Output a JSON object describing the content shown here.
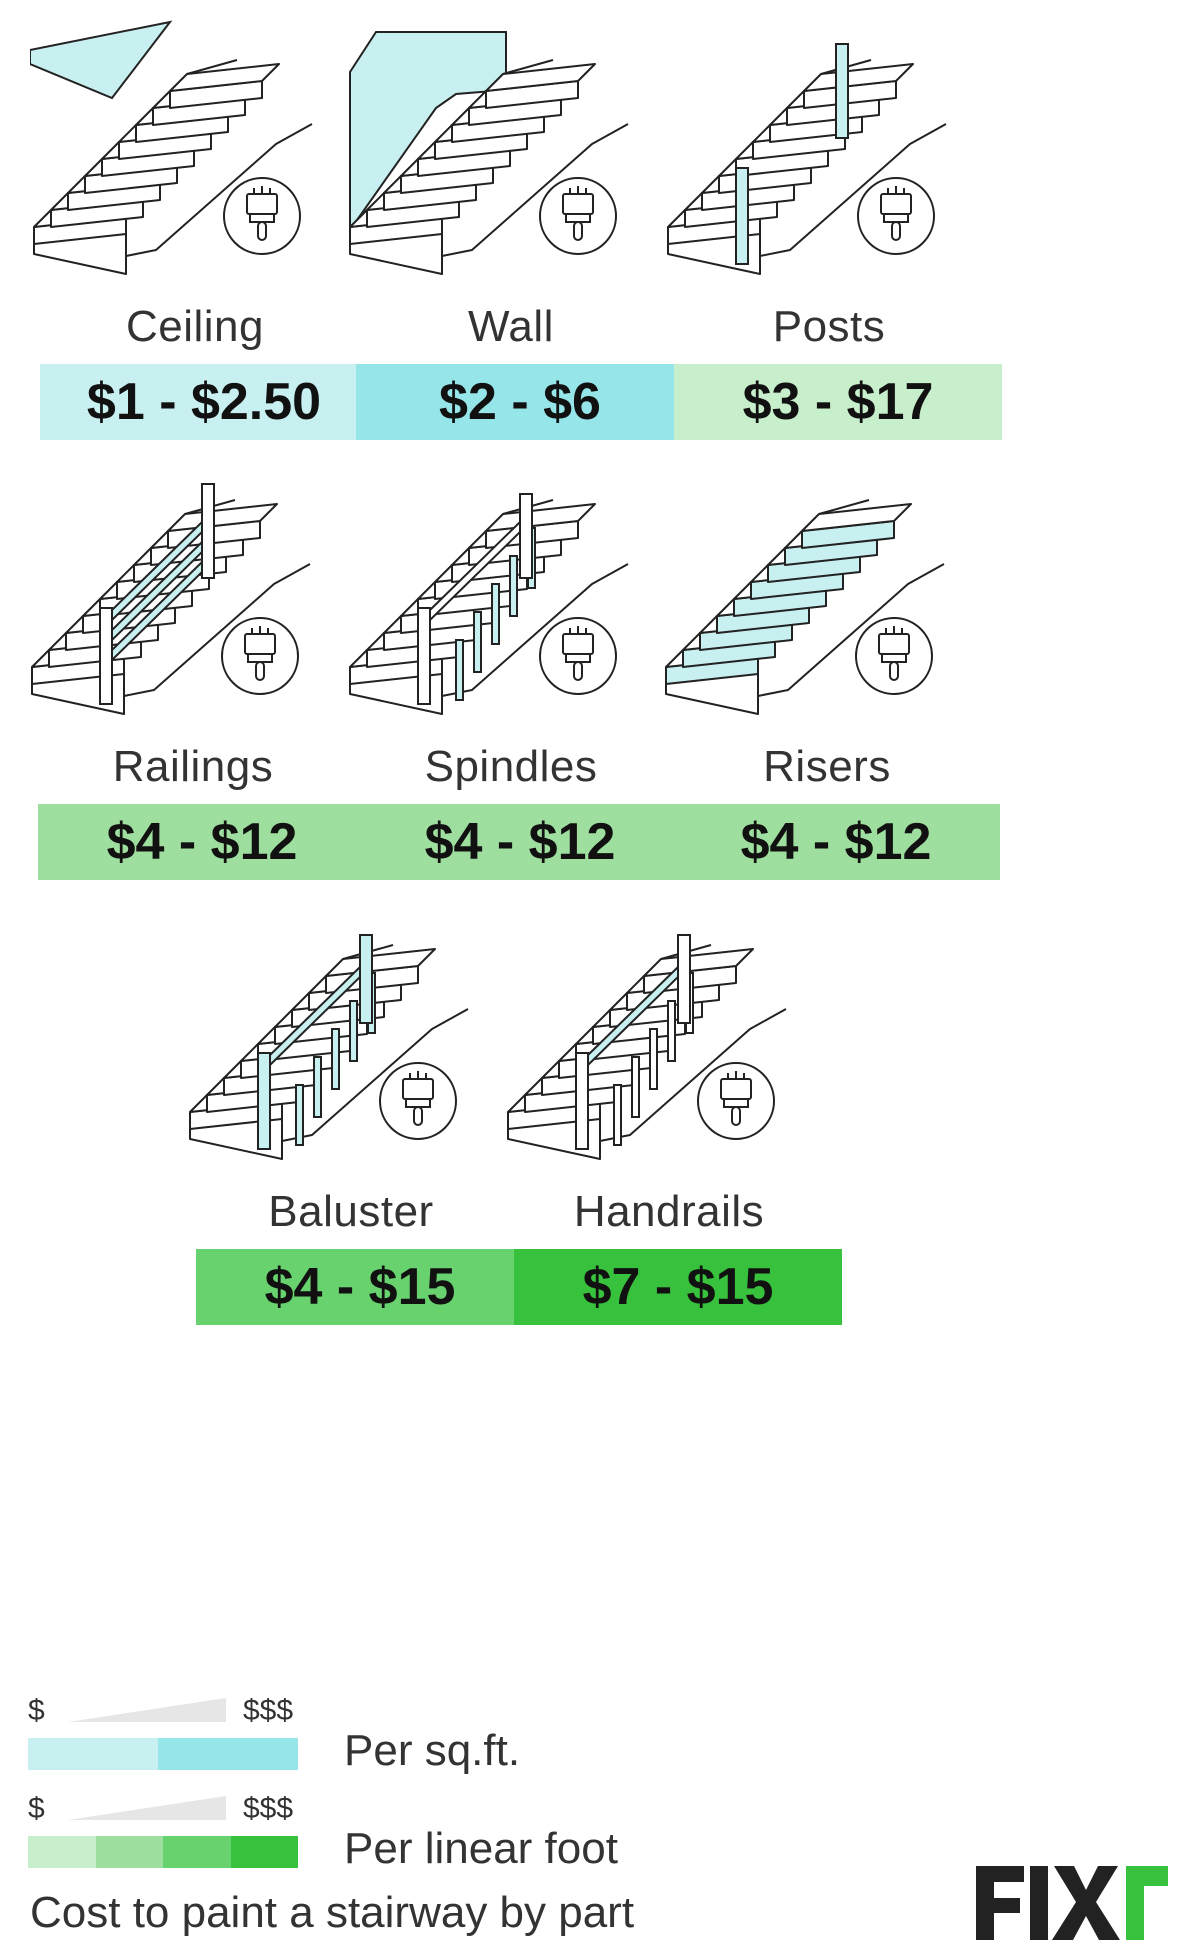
{
  "items": [
    {
      "label": "Ceiling",
      "price": "$1 - $2.50",
      "color": "#c9f0f1"
    },
    {
      "label": "Wall",
      "price": "$2 - $6",
      "color": "#96e5e8"
    },
    {
      "label": "Posts",
      "price": "$3 - $17",
      "color": "#c8efcc"
    },
    {
      "label": "Railings",
      "price": "$4 - $12",
      "color": "#9ede9e"
    },
    {
      "label": "Spindles",
      "price": "$4 - $12",
      "color": "#9ede9e"
    },
    {
      "label": "Risers",
      "price": "$4 - $12",
      "color": "#9ede9e"
    },
    {
      "label": "Baluster",
      "price": "$4 - $15",
      "color": "#68d36e"
    },
    {
      "label": "Handrails",
      "price": "$7 - $15",
      "color": "#38c13c"
    }
  ],
  "legend": {
    "low": "$",
    "high": "$$$",
    "sqft_caption": "Per sq.ft.",
    "linear_caption": "Per linear foot",
    "sqft_colors": [
      "#c9f0f1",
      "#96e5e8"
    ],
    "linear_colors": [
      "#c8efcc",
      "#9ede9e",
      "#68d36e",
      "#38c13c"
    ]
  },
  "footer": {
    "title": "Cost to paint a stairway by part",
    "logo": "FIXr",
    "logo_icon": "fixr-logo"
  },
  "icons": {
    "brush": "paint-brush-icon"
  },
  "colors": {
    "highlight": "#c9f0f1",
    "line": "#222222"
  }
}
